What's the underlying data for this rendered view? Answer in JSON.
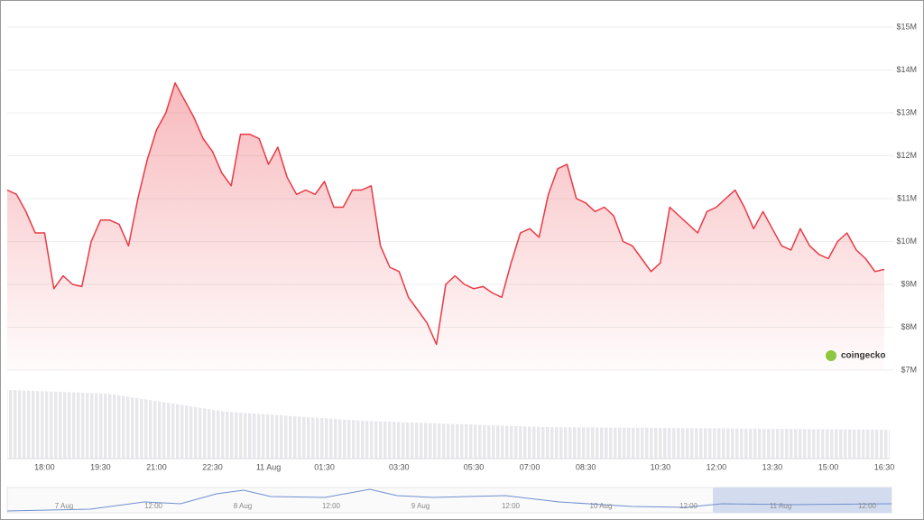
{
  "chart_data": {
    "type": "area",
    "categories": [
      null,
      null,
      null,
      null,
      "18:00",
      null,
      null,
      null,
      null,
      null,
      "19:30",
      null,
      null,
      null,
      null,
      null,
      "21:00",
      null,
      null,
      null,
      null,
      null,
      "22:30",
      null,
      null,
      null,
      null,
      null,
      "11 Aug",
      null,
      null,
      null,
      null,
      null,
      "01:30",
      null,
      null,
      null,
      null,
      null,
      null,
      null,
      "03:30",
      null,
      null,
      null,
      null,
      null,
      null,
      null,
      "05:30",
      null,
      null,
      null,
      null,
      null,
      "07:00",
      null,
      null,
      null,
      null,
      null,
      "08:30",
      null,
      null,
      null,
      null,
      null,
      null,
      null,
      "10:30",
      null,
      null,
      null,
      null,
      null,
      "12:00",
      null,
      null,
      null,
      null,
      null,
      "13:30",
      null,
      null,
      null,
      null,
      null,
      "15:00",
      null,
      null,
      null,
      null,
      null,
      "16:30"
    ],
    "series": [
      {
        "color": "#ea3943",
        "values": [
          11200000,
          11100000,
          10700000,
          10200000,
          10200000,
          8900000,
          9200000,
          9000000,
          8950000,
          10000000,
          10500000,
          10500000,
          10400000,
          9900000,
          11000000,
          11900000,
          12600000,
          13000000,
          13700000,
          13300000,
          12900000,
          12400000,
          12100000,
          11600000,
          11300000,
          12500000,
          12500000,
          12400000,
          11800000,
          12200000,
          11500000,
          11100000,
          11200000,
          11100000,
          11400000,
          10800000,
          10800000,
          11200000,
          11200000,
          11300000,
          9900000,
          9400000,
          9300000,
          8700000,
          8400000,
          8100000,
          7600000,
          9000000,
          9200000,
          9000000,
          8900000,
          8950000,
          8800000,
          8700000,
          9500000,
          10200000,
          10300000,
          10100000,
          11100000,
          11700000,
          11800000,
          11000000,
          10900000,
          10700000,
          10800000,
          10600000,
          10000000,
          9900000,
          9600000,
          9300000,
          9500000,
          10800000,
          10600000,
          10400000,
          10200000,
          10700000,
          10800000,
          11000000,
          11200000,
          10800000,
          10300000,
          10700000,
          10300000,
          9900000,
          9800000,
          10300000,
          9900000,
          9700000,
          9600000,
          10000000,
          10200000,
          9800000,
          9600000,
          9300000,
          9350000
        ]
      }
    ],
    "ylim": [
      7000000,
      15000000
    ],
    "yticks": [
      {
        "value": 7000000,
        "label": "$7M"
      },
      {
        "value": 8000000,
        "label": "$8M"
      },
      {
        "value": 9000000,
        "label": "$9M"
      },
      {
        "value": 10000000,
        "label": "$10M"
      },
      {
        "value": 11000000,
        "label": "$11M"
      },
      {
        "value": 12000000,
        "label": "$12M"
      },
      {
        "value": 13000000,
        "label": "$13M"
      },
      {
        "value": 14000000,
        "label": "$14M"
      },
      {
        "value": 15000000,
        "label": "$15M"
      }
    ],
    "grid": true,
    "watermark": "coingecko",
    "navigator_labels": [
      "7 Aug",
      "12:00",
      "8 Aug",
      "12:00",
      "9 Aug",
      "12:00",
      "10 Aug",
      "12:00",
      "11 Aug",
      "12:00"
    ]
  }
}
